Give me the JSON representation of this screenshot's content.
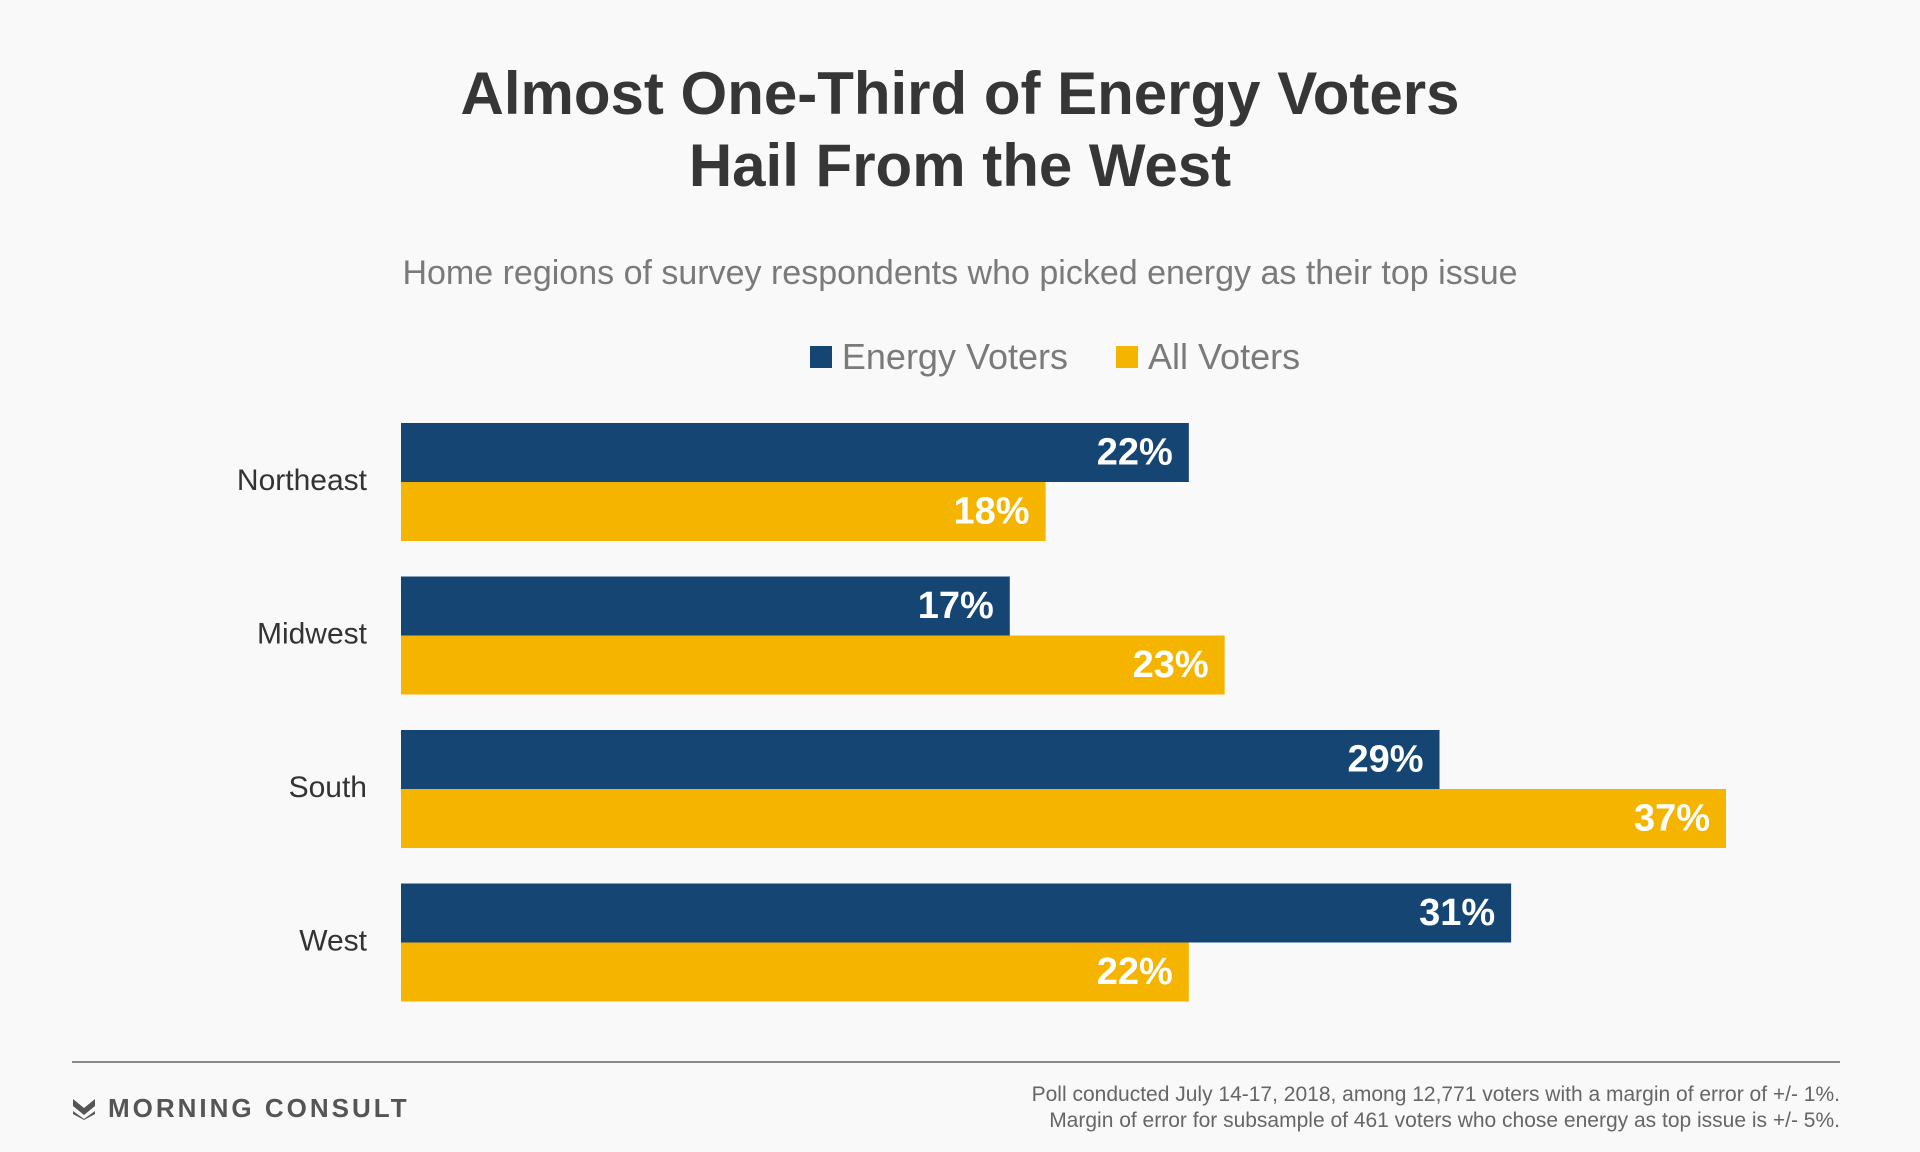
{
  "chart_data": {
    "type": "bar",
    "orientation": "horizontal",
    "title": [
      "Almost One-Third of Energy Voters",
      "Hail From the West"
    ],
    "subtitle": "Home regions of survey respondents who picked energy as their top issue",
    "categories": [
      "Northeast",
      "Midwest",
      "South",
      "West"
    ],
    "series": [
      {
        "name": "Energy Voters",
        "color": "#154673",
        "values": [
          22,
          17,
          29,
          31
        ],
        "labels": [
          "22%",
          "17%",
          "29%",
          "31%"
        ]
      },
      {
        "name": "All Voters",
        "color": "#f5b400",
        "values": [
          18,
          23,
          37,
          22
        ],
        "labels": [
          "18%",
          "23%",
          "37%",
          "22%"
        ]
      }
    ],
    "xlim": [
      0,
      37
    ],
    "grid": false,
    "legend_position": "top"
  },
  "footer": {
    "brand": "MORNING CONSULT",
    "brand_icon": "morning-consult-logo",
    "note_line1": "Poll conducted July 14-17, 2018, among 12,771 voters with a margin of error of +/- 1%.",
    "note_line2": "Margin of error for subsample of 461 voters who chose energy as top issue is +/- 5%."
  }
}
